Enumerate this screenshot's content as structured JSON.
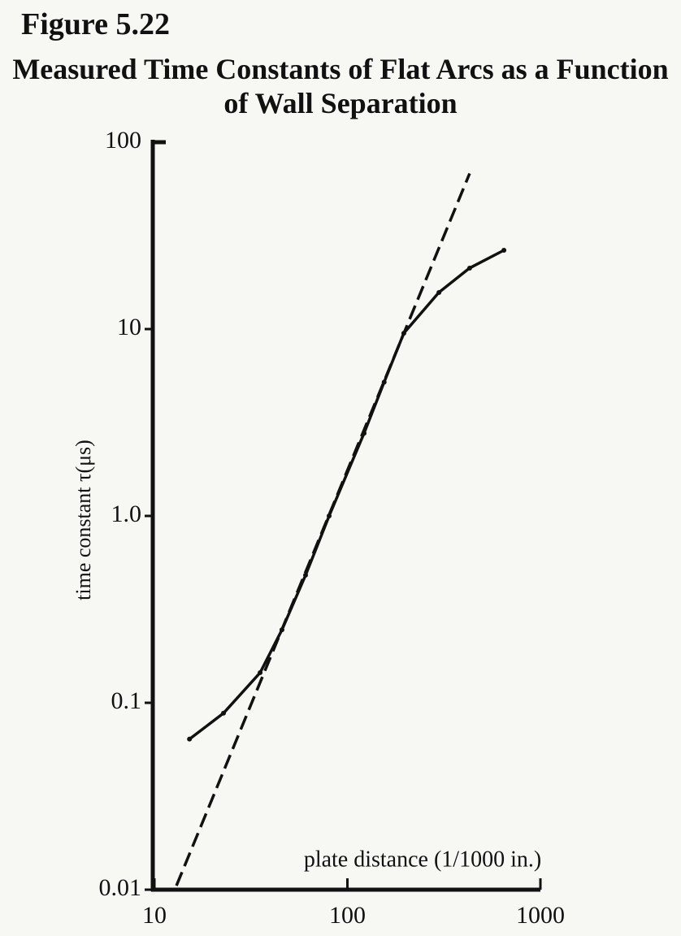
{
  "chart_data": {
    "type": "line",
    "figure_label": "Figure 5.22",
    "title": "Measured Time Constants of Flat Arcs as a Function of Wall Separation",
    "x_label": "plate distance (1/1000 in.)",
    "y_label": "time constant τ(μs)",
    "x_scale": "log",
    "y_scale": "log",
    "xlim": [
      10,
      1000
    ],
    "xticks": [
      10,
      100,
      1000
    ],
    "ylim": [
      0.01,
      100
    ],
    "yticks": [
      0.01,
      0.1,
      {
        "value": 1,
        "label": "1.0"
      },
      10,
      100
    ],
    "grid": false,
    "series": [
      {
        "color": "#111111",
        "style": "dashed",
        "markers": false,
        "x": [
          13,
          430
        ],
        "values": [
          0.0105,
          68
        ]
      },
      {
        "color": "#111111",
        "style": "solid",
        "markers": true,
        "x": [
          15.2,
          22.8,
          35.3,
          45.8,
          60.7,
          80.4,
          122,
          155,
          196,
          298,
          430,
          647
        ],
        "values": [
          0.064,
          0.088,
          0.145,
          0.246,
          0.482,
          1.0,
          2.77,
          5.2,
          9.5,
          15.7,
          21.2,
          26.4
        ]
      }
    ]
  }
}
